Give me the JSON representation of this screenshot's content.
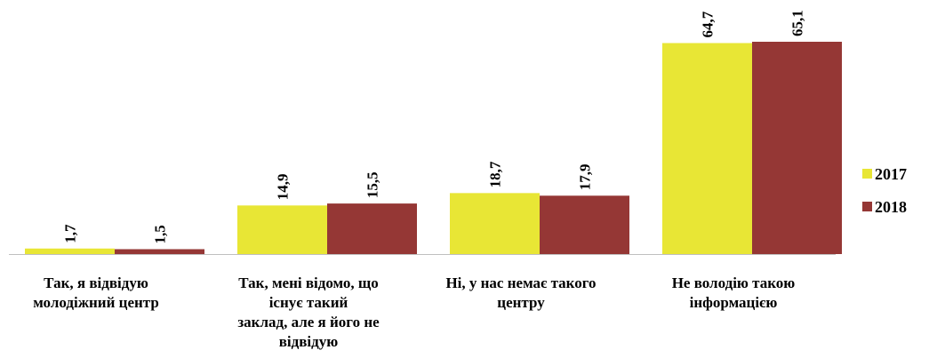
{
  "chart_data": {
    "type": "bar",
    "categories": [
      [
        "Так, я відвідую",
        "молодіжний центр"
      ],
      [
        "Так, мені відомо, що",
        "існує такий",
        "заклад, але я його не",
        "відвідую"
      ],
      [
        "Ні, у нас немає такого",
        "центру"
      ],
      [
        "Не володію такою",
        "інформацією"
      ]
    ],
    "series": [
      {
        "name": "2017",
        "values": [
          1.7,
          14.9,
          18.7,
          64.7
        ],
        "labels": [
          "1,7",
          "14,9",
          "18,7",
          "64,7"
        ],
        "color": "#e8e635"
      },
      {
        "name": "2018",
        "values": [
          1.5,
          15.5,
          17.9,
          65.1
        ],
        "labels": [
          "1,5",
          "15,5",
          "17,9",
          "65,1"
        ],
        "color": "#953735"
      }
    ],
    "ylim": [
      0,
      65.1
    ],
    "grid": false,
    "legend_position": "right"
  }
}
